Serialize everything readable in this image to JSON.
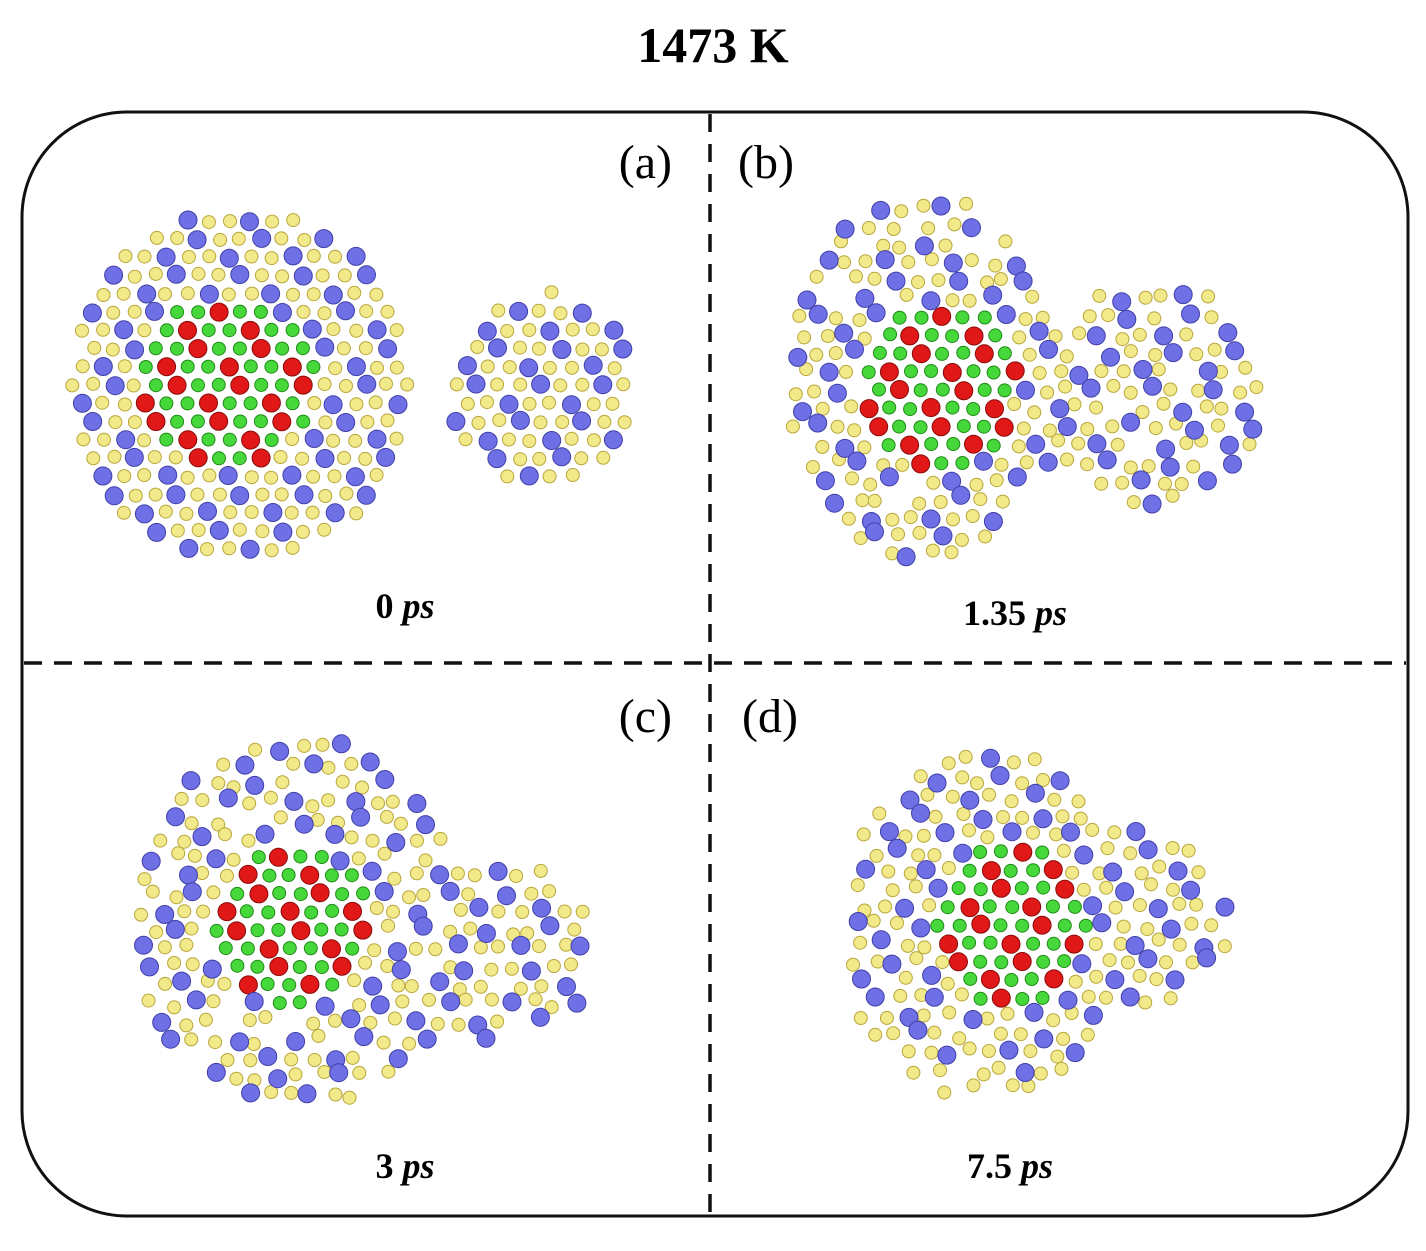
{
  "title": "1473 K",
  "panels": [
    {
      "label": "(a)",
      "time": "0",
      "unit": "ps"
    },
    {
      "label": "(b)",
      "time": "1.35",
      "unit": "ps"
    },
    {
      "label": "(c)",
      "time": "3",
      "unit": "ps"
    },
    {
      "label": "(d)",
      "time": "7.5",
      "unit": "ps"
    }
  ]
}
